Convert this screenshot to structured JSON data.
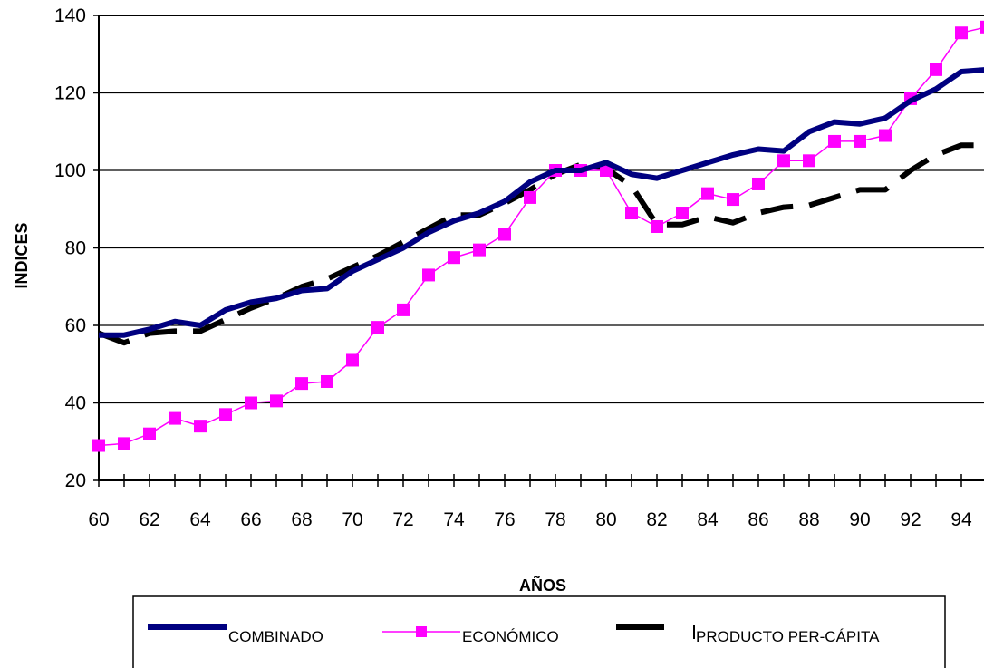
{
  "chart_data": {
    "type": "line",
    "title": "",
    "xlabel": "AÑOS",
    "ylabel": "INDICES",
    "xlim": [
      60,
      95
    ],
    "ylim": [
      20,
      140
    ],
    "x_ticks": [
      "60",
      "62",
      "64",
      "66",
      "68",
      "70",
      "72",
      "74",
      "76",
      "78",
      "80",
      "82",
      "84",
      "86",
      "88",
      "90",
      "92",
      "94"
    ],
    "y_ticks": [
      "20",
      "40",
      "60",
      "80",
      "100",
      "120",
      "140"
    ],
    "grid": "horizontal",
    "legend_position": "bottom",
    "x": [
      60,
      61,
      62,
      63,
      64,
      65,
      66,
      67,
      68,
      69,
      70,
      71,
      72,
      73,
      74,
      75,
      76,
      77,
      78,
      79,
      80,
      81,
      82,
      83,
      84,
      85,
      86,
      87,
      88,
      89,
      90,
      91,
      92,
      93,
      94,
      95
    ],
    "series": [
      {
        "name": "COMBINADO",
        "color": "#000080",
        "style": "solid-thick",
        "values": [
          57.5,
          57.5,
          59,
          61,
          60,
          64,
          66,
          67,
          69,
          69.5,
          74,
          77,
          80,
          84,
          87,
          89,
          92,
          97,
          100,
          100,
          102,
          99,
          98,
          100,
          102,
          104,
          105.5,
          105,
          110,
          112.5,
          112,
          113.5,
          118,
          121,
          125.5,
          126
        ]
      },
      {
        "name": "ECONÓMICO",
        "color": "#ff00ff",
        "style": "solid-thin-square-markers",
        "values": [
          29,
          29.5,
          32,
          36,
          34,
          37,
          40,
          40.5,
          45,
          45.5,
          51,
          59.5,
          64,
          73,
          77.5,
          79.5,
          83.5,
          93,
          100,
          100,
          100,
          89,
          85.5,
          89,
          94,
          92.5,
          96.5,
          102.5,
          102.5,
          107.5,
          107.5,
          109,
          118.5,
          126,
          135.5,
          137
        ]
      },
      {
        "name": "PRODUCTO PER-CÁPITA",
        "color": "#000000",
        "style": "dashed-thick",
        "values": [
          58,
          55.5,
          58,
          58.5,
          58.5,
          61.5,
          64.5,
          67,
          70,
          72,
          75,
          78,
          81.5,
          85,
          88.5,
          88.5,
          91.5,
          95,
          99,
          101.5,
          100.5,
          96,
          86,
          86,
          88,
          86.5,
          89,
          90.5,
          91,
          93,
          95,
          95,
          100,
          104,
          106.5,
          106.5
        ]
      }
    ]
  }
}
